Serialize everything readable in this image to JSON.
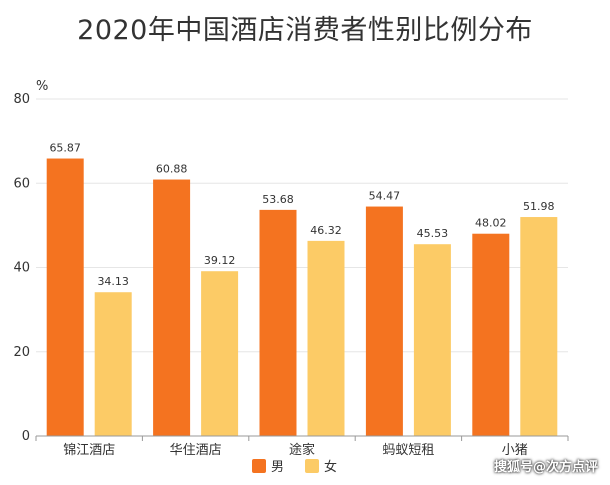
{
  "watermark": "搜狐号@次方点评",
  "chart_data": {
    "type": "bar",
    "title": "2020年中国酒店消费者性别比例分布",
    "ylabel": "%",
    "xlabel": "",
    "ylim": [
      0,
      80
    ],
    "yticks": [
      0,
      20,
      40,
      60,
      80
    ],
    "categories": [
      "锦江酒店",
      "华住酒店",
      "途家",
      "蚂蚁短租",
      "小猪"
    ],
    "series": [
      {
        "name": "男",
        "color": "#F47320",
        "values": [
          65.87,
          60.88,
          53.68,
          54.47,
          48.02
        ],
        "labels": [
          "65.87",
          "60.88",
          "53.68",
          "54.47",
          "48.02"
        ]
      },
      {
        "name": "女",
        "color": "#FCCB66",
        "values": [
          34.13,
          39.12,
          46.32,
          45.53,
          51.98
        ],
        "labels": [
          "34.13",
          "39.12",
          "46.32",
          "45.53",
          "51.98"
        ]
      }
    ],
    "grid": true,
    "legend_position": "bottom"
  }
}
